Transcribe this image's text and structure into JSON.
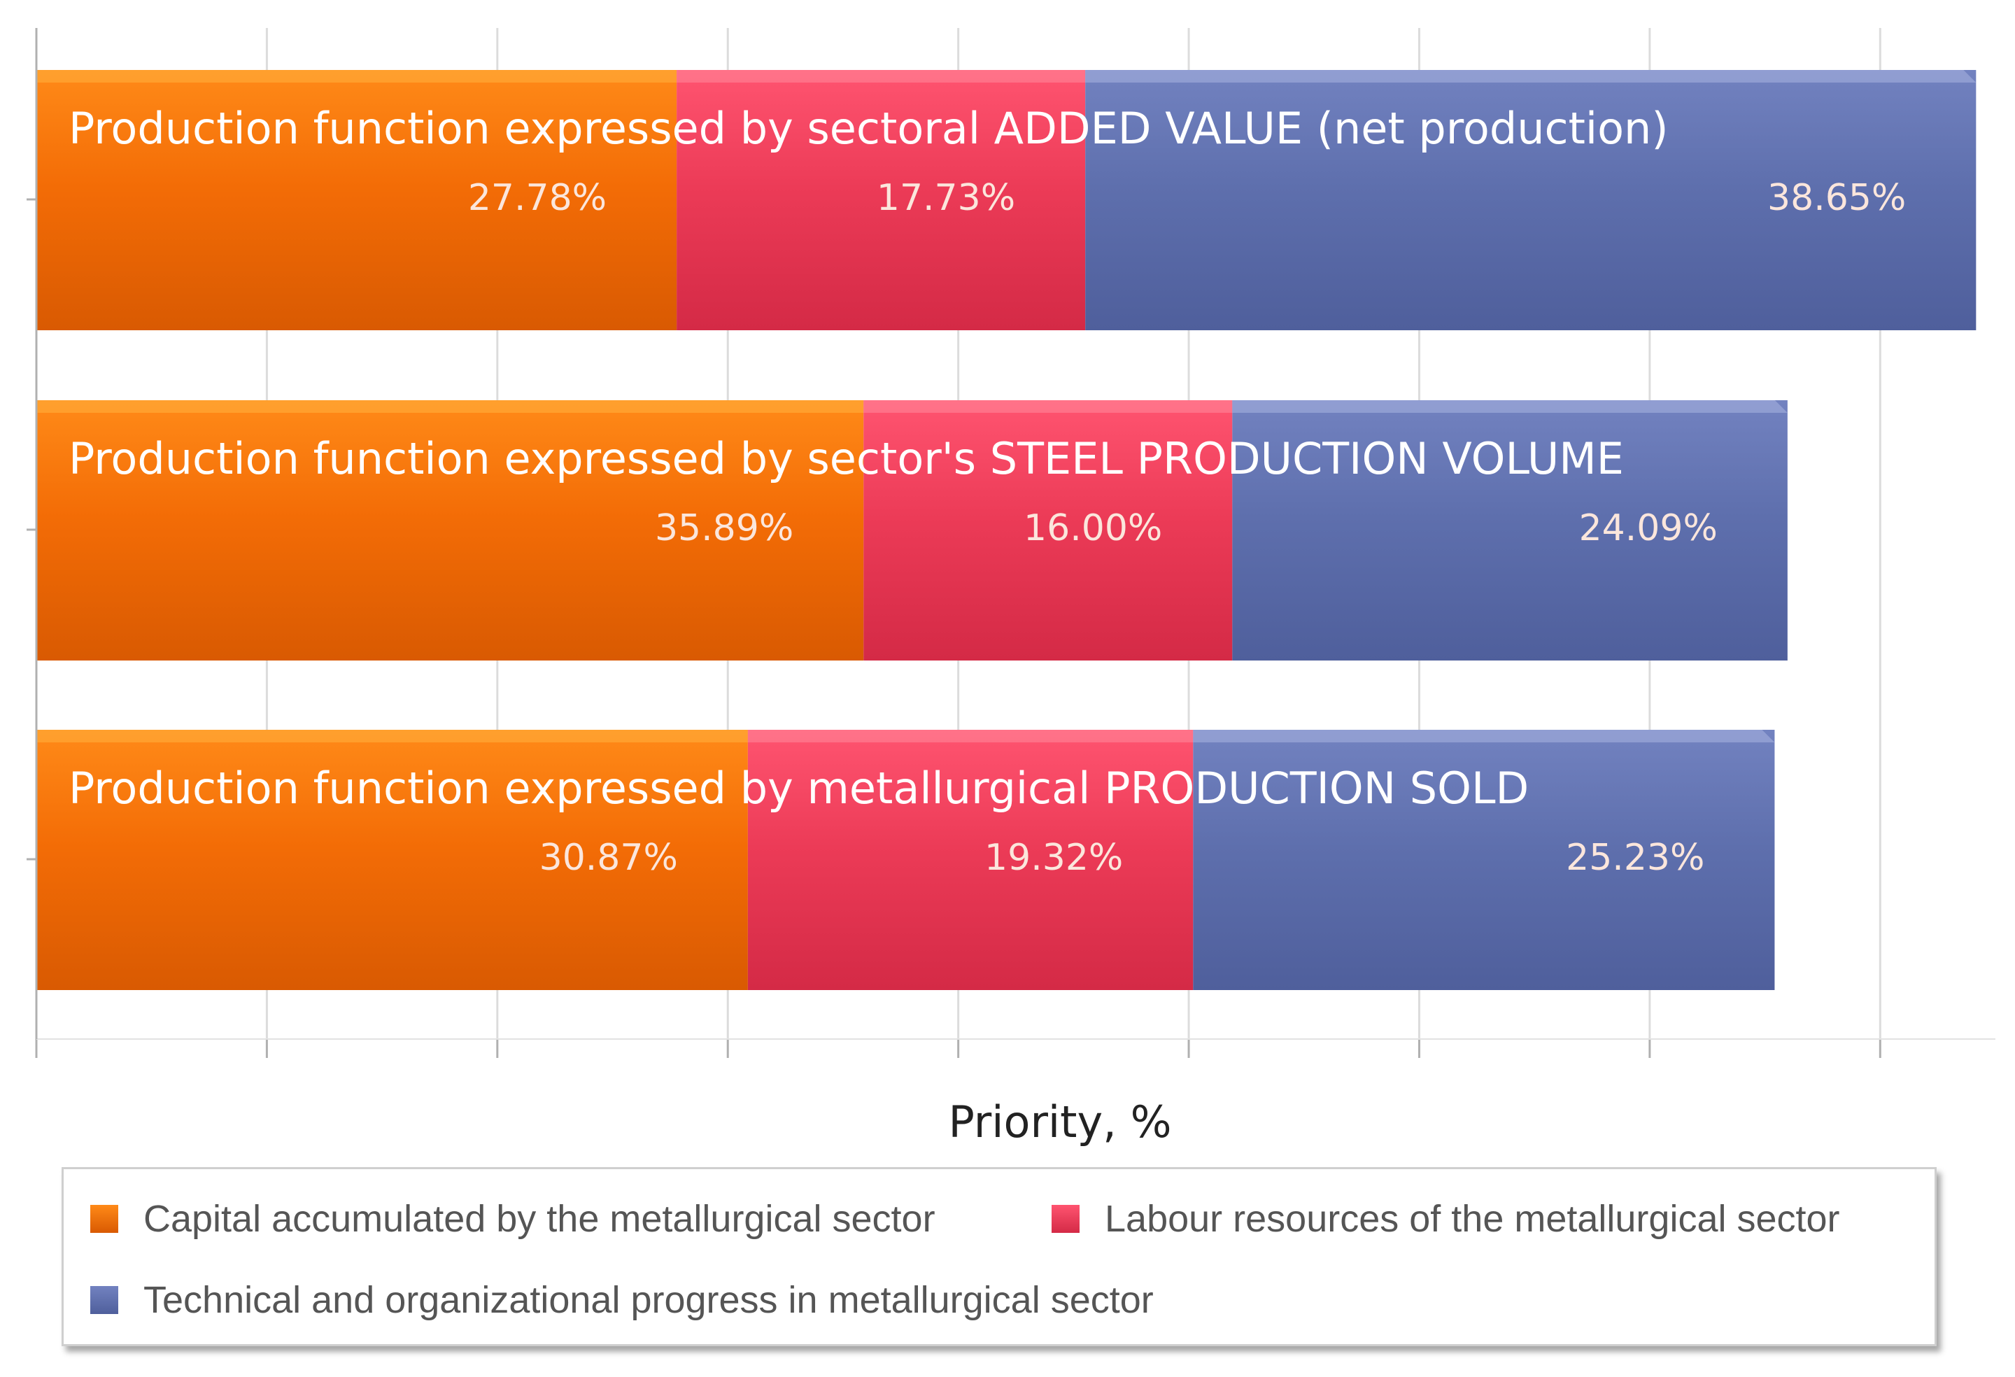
{
  "chart_data": {
    "type": "bar",
    "orientation": "horizontal",
    "stacked": true,
    "categories": [
      "Production function expressed by sectoral ADDED VALUE (net production)",
      "Production function expressed by sector's STEEL PRODUCTION VOLUME",
      "Production function expressed by metallurgical PRODUCTION SOLD"
    ],
    "series": [
      {
        "name": "Capital accumulated by the metallurgical sector",
        "color": "#f26a05",
        "values": [
          27.78,
          35.89,
          30.87
        ],
        "labels": [
          "27.78%",
          "35.89%",
          "30.87%"
        ]
      },
      {
        "name": "Labour resources of the metallurgical sector",
        "color": "#e83a55",
        "values": [
          17.73,
          16.0,
          19.32
        ],
        "labels": [
          "17.73%",
          "16.00%",
          "19.32%"
        ]
      },
      {
        "name": "Technical and organizational progress in metallurgical sector",
        "color": "#5c6dab",
        "values": [
          38.65,
          24.09,
          25.23
        ],
        "labels": [
          "38.65%",
          "24.09%",
          "25.23%"
        ]
      }
    ],
    "xlabel": "Priority, %",
    "xlim": [
      0,
      85
    ],
    "grid": true,
    "legend": "bottom"
  }
}
